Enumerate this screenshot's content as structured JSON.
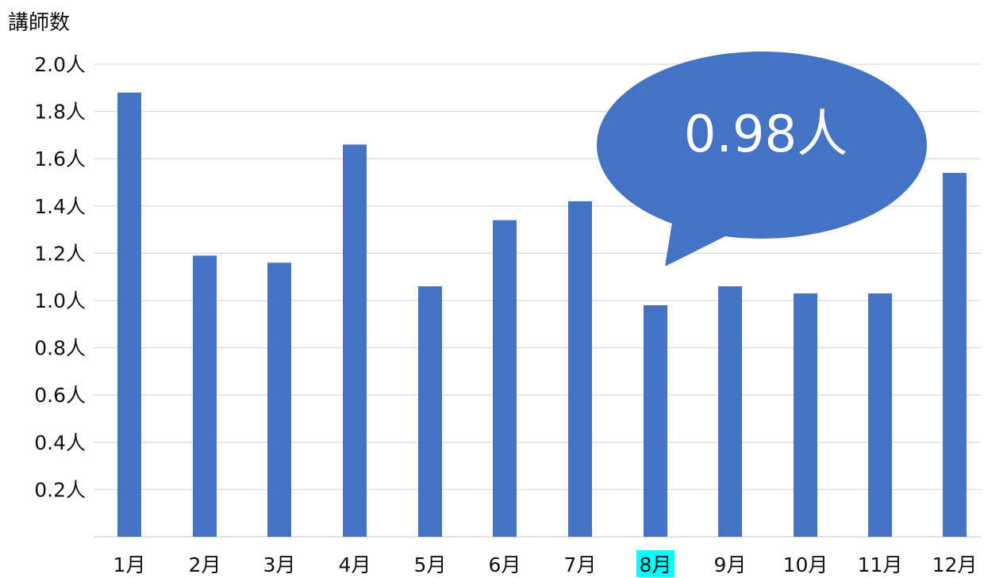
{
  "chart_data": {
    "type": "bar",
    "ylabel": "講師数",
    "y_unit": "人",
    "ylim": [
      0,
      2.0
    ],
    "yticks": [
      "0.2人",
      "0.4人",
      "0.6人",
      "0.8人",
      "1.0人",
      "1.2人",
      "1.4人",
      "1.6人",
      "1.8人",
      "2.0人"
    ],
    "categories": [
      "1月",
      "2月",
      "3月",
      "4月",
      "5月",
      "6月",
      "7月",
      "8月",
      "9月",
      "10月",
      "11月",
      "12月"
    ],
    "values": [
      1.88,
      1.19,
      1.16,
      1.66,
      1.06,
      1.34,
      1.42,
      0.98,
      1.06,
      1.03,
      1.03,
      1.54
    ],
    "highlight_category": "8月",
    "callout": "0.98人",
    "grid": true,
    "colors": {
      "bar": "#4472C4",
      "highlight_bg": "#00FFFF",
      "grid": "#d9d9d9",
      "bubble": "#4472C4"
    }
  }
}
